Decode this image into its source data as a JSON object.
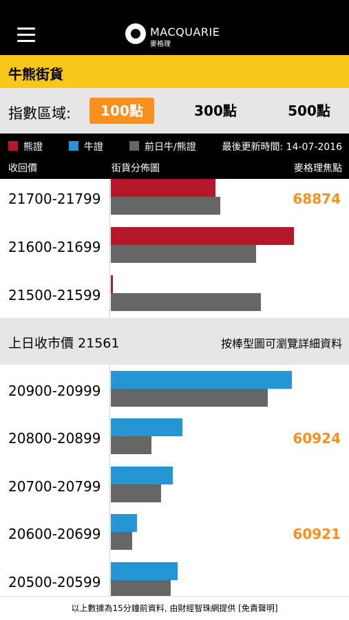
{
  "header": {
    "logo_text": "MACQUARIE",
    "logo_sub": "麥格理",
    "menu_icon": "hamburger-menu-icon"
  },
  "title": "牛熊街貨",
  "range": {
    "label": "指數區域:",
    "options": [
      "100點",
      "300點",
      "500點"
    ],
    "selected": "100點"
  },
  "legend": {
    "bear": "熊證",
    "bull": "牛證",
    "prev": "前日牛/熊證",
    "updated": "最後更新時間: 14-07-2016"
  },
  "columns": {
    "range": "收回價",
    "chart": "街貨分佈圖",
    "focus": "麥格理焦點"
  },
  "colors": {
    "bear": "#b5182b",
    "bull": "#2396d3",
    "prev": "#666666",
    "accent": "#f7901e",
    "highlight": "#f9c61a"
  },
  "bear_rows": [
    {
      "label": "21700-21799",
      "current": 0.44,
      "previous": 0.46,
      "focus": "68874"
    },
    {
      "label": "21600-21699",
      "current": 0.77,
      "previous": 0.61,
      "focus": ""
    },
    {
      "label": "21500-21599",
      "current": 0.008,
      "previous": 0.63,
      "focus": ""
    }
  ],
  "mid": {
    "prev_close": "上日收市價 21561",
    "hint": "按棒型圖可瀏覽詳細資料"
  },
  "bull_rows": [
    {
      "label": "20900-20999",
      "current": 0.76,
      "previous": 0.66,
      "focus": ""
    },
    {
      "label": "20800-20899",
      "current": 0.3,
      "previous": 0.17,
      "focus": "60924"
    },
    {
      "label": "20700-20799",
      "current": 0.26,
      "previous": 0.21,
      "focus": ""
    },
    {
      "label": "20600-20699",
      "current": 0.11,
      "previous": 0.09,
      "focus": "60921"
    },
    {
      "label": "20500-20599",
      "current": 0.28,
      "previous": 0.25,
      "focus": ""
    }
  ],
  "footer": "以上數據為15分鐘前資料, 由財經智珠網提供 [免責聲明]"
}
